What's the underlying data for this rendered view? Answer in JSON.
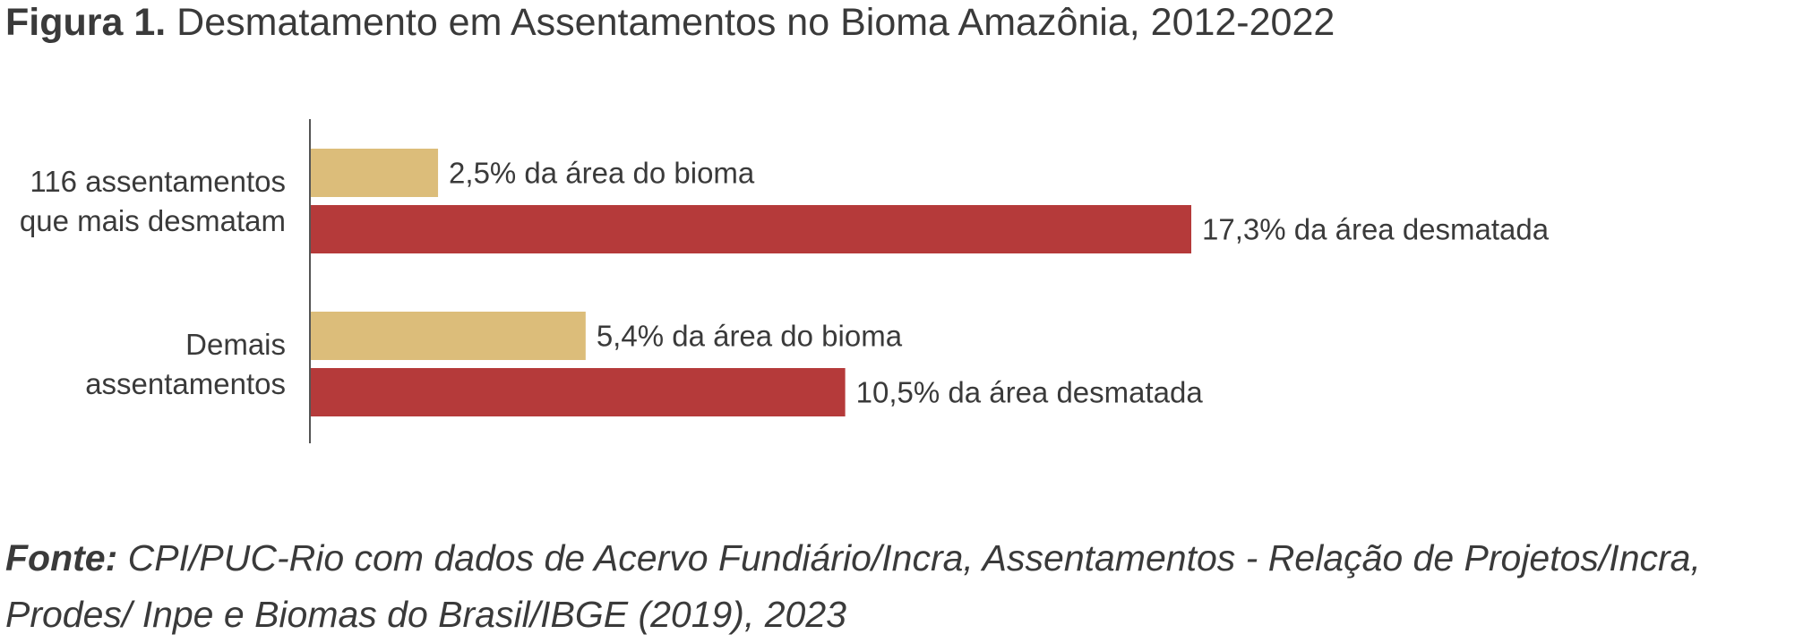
{
  "header": {
    "figure_label": "Figura 1.",
    "title": "Desmatamento em Assentamentos no Bioma Amazônia, 2012-2022"
  },
  "chart_data": {
    "type": "bar",
    "orientation": "horizontal",
    "categories": [
      [
        "116 assentamentos",
        "que mais desmatam"
      ],
      [
        "Demais",
        "assentamentos"
      ]
    ],
    "series": [
      {
        "values": [
          2.5,
          5.4
        ],
        "labels": [
          "2,5% da área do bioma",
          "5,4% da área do bioma"
        ],
        "color": "#dcbd7a"
      },
      {
        "values": [
          17.3,
          10.5
        ],
        "labels": [
          "17,3% da área desmatada",
          "10,5% da área desmatada"
        ],
        "color": "#b53a3a"
      }
    ],
    "xlim": [
      0,
      17.3
    ],
    "grid": false,
    "legend": "none"
  },
  "footer": {
    "source_label": "Fonte:",
    "source_text": "CPI/PUC-Rio com dados de Acervo Fundiário/Incra, Assentamentos - Relação de Projetos/Incra, Prodes/ Inpe e Biomas do Brasil/IBGE (2019), 2023"
  },
  "colors": {
    "text": "#3a3a3a",
    "axis": "#555555",
    "bioma_bar": "#dcbd7a",
    "desmatada_bar": "#b53a3a"
  }
}
